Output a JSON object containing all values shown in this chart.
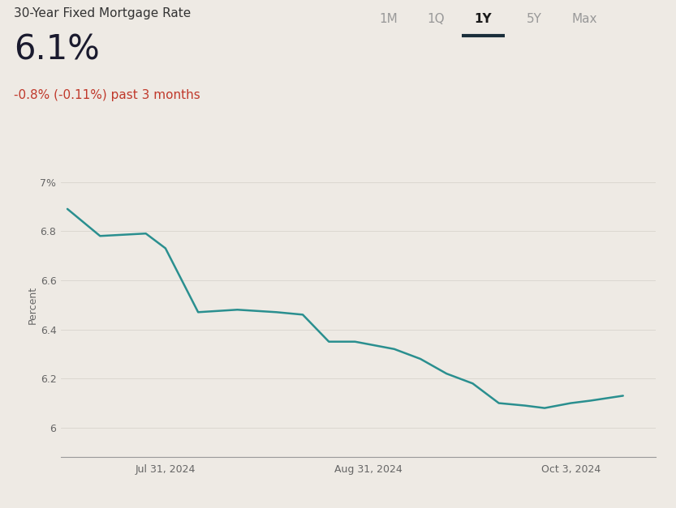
{
  "title_small": "30-Year Fixed Mortgage Rate",
  "title_big": "6.1%",
  "subtitle": "-0.8% (-0.11%) past 3 months",
  "subtitle_color": "#c0392b",
  "nav_items": [
    "1M",
    "1Q",
    "1Y",
    "5Y",
    "Max"
  ],
  "nav_active": "1Y",
  "ylabel": "Percent",
  "background_color": "#eeeae4",
  "line_color": "#2a8f8f",
  "line_width": 1.8,
  "x_tick_labels": [
    "Jul 31, 2024",
    "Aug 31, 2024",
    "Oct 3, 2024"
  ],
  "x_tick_positions": [
    15,
    46,
    77
  ],
  "ytick_labels": [
    "7%",
    "6.8",
    "6.6",
    "6.4",
    "6.2",
    "6"
  ],
  "ytick_values": [
    7.0,
    6.8,
    6.6,
    6.4,
    6.2,
    6.0
  ],
  "ylim": [
    5.88,
    7.12
  ],
  "xlim": [
    -1,
    90
  ],
  "data_x": [
    0,
    5,
    12,
    15,
    20,
    26,
    32,
    36,
    40,
    44,
    46,
    50,
    54,
    58,
    62,
    66,
    70,
    73,
    75,
    77,
    80,
    85
  ],
  "data_y": [
    6.89,
    6.78,
    6.79,
    6.73,
    6.47,
    6.48,
    6.47,
    6.46,
    6.35,
    6.35,
    6.34,
    6.32,
    6.28,
    6.22,
    6.18,
    6.1,
    6.09,
    6.08,
    6.09,
    6.1,
    6.11,
    6.13
  ],
  "title_small_fontsize": 11,
  "title_big_fontsize": 30,
  "subtitle_fontsize": 11,
  "nav_fontsize": 11,
  "underline_color": "#1a2e3a",
  "nav_inactive_color": "#999999",
  "nav_active_color": "#1a1a1a",
  "tick_color": "#666666",
  "tick_fontsize": 9,
  "grid_color": "#d8d4cd",
  "bottom_spine_color": "#999999"
}
